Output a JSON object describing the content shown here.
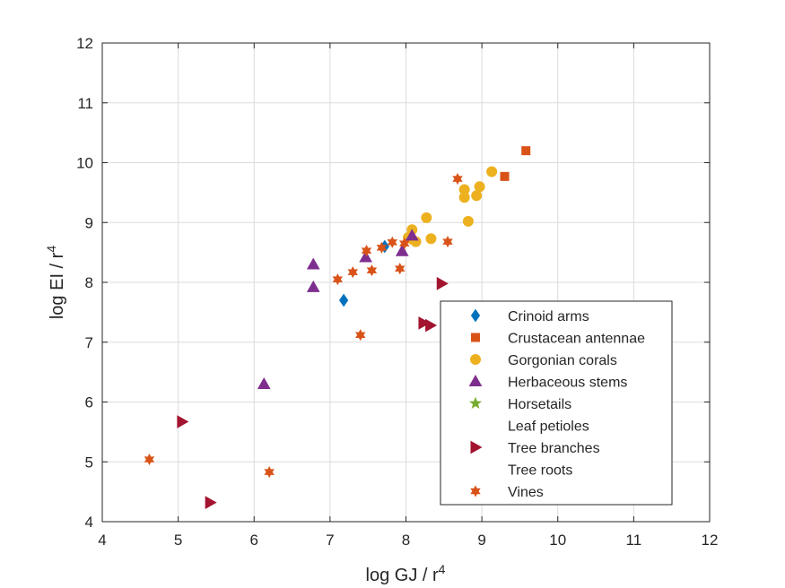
{
  "chart_data": {
    "type": "scatter",
    "xlabel": "log GJ / r",
    "xlabel_sup": "4",
    "ylabel": "log EI / r",
    "ylabel_sup": "4",
    "xlim": [
      4,
      12
    ],
    "ylim": [
      4,
      12
    ],
    "xticks": [
      4,
      5,
      6,
      7,
      8,
      9,
      10,
      11,
      12
    ],
    "yticks": [
      4,
      5,
      6,
      7,
      8,
      9,
      10,
      11,
      12
    ],
    "grid": true,
    "legend_position": "lower-right",
    "series": [
      {
        "name": "Crinoid arms",
        "marker": "diamond",
        "color": "#0072BD",
        "points": [
          [
            7.18,
            7.7
          ],
          [
            7.72,
            8.6
          ]
        ]
      },
      {
        "name": "Crustacean antennae",
        "marker": "square",
        "color": "#D95319",
        "points": [
          [
            9.58,
            10.2
          ],
          [
            9.3,
            9.77
          ]
        ]
      },
      {
        "name": "Gorgonian corals",
        "marker": "circle",
        "color": "#EDB120",
        "points": [
          [
            9.13,
            9.85
          ],
          [
            8.97,
            9.6
          ],
          [
            8.77,
            9.55
          ],
          [
            8.77,
            9.42
          ],
          [
            8.93,
            9.45
          ],
          [
            8.82,
            9.02
          ],
          [
            8.27,
            9.08
          ],
          [
            8.33,
            8.73
          ],
          [
            8.08,
            8.88
          ],
          [
            8.08,
            8.72
          ],
          [
            8.13,
            8.68
          ],
          [
            8.03,
            8.75
          ]
        ]
      },
      {
        "name": "Herbaceous stems",
        "marker": "triangle-up",
        "color": "#7E2F8E",
        "points": [
          [
            6.78,
            8.3
          ],
          [
            6.78,
            7.92
          ],
          [
            7.47,
            8.42
          ],
          [
            7.95,
            8.52
          ],
          [
            8.08,
            8.78
          ],
          [
            6.13,
            6.3
          ]
        ]
      },
      {
        "name": "Horsetails",
        "marker": "star5",
        "color": "#77AC30",
        "points": []
      },
      {
        "name": "Leaf petioles",
        "marker": "none",
        "color": "#4DBEEE",
        "points": []
      },
      {
        "name": "Tree branches",
        "marker": "triangle-right",
        "color": "#A2142F",
        "points": [
          [
            8.47,
            7.98
          ],
          [
            8.23,
            7.32
          ],
          [
            8.32,
            7.28
          ],
          [
            5.05,
            5.67
          ],
          [
            5.42,
            4.32
          ]
        ]
      },
      {
        "name": "Tree roots",
        "marker": "none",
        "color": "#0072BD",
        "points": []
      },
      {
        "name": "Vines",
        "marker": "star6",
        "color": "#D95319",
        "points": [
          [
            8.68,
            9.73
          ],
          [
            8.55,
            8.68
          ],
          [
            7.48,
            8.53
          ],
          [
            7.82,
            8.67
          ],
          [
            7.68,
            8.58
          ],
          [
            7.3,
            8.17
          ],
          [
            7.55,
            8.2
          ],
          [
            7.1,
            8.05
          ],
          [
            7.92,
            8.23
          ],
          [
            7.98,
            8.65
          ],
          [
            7.4,
            7.12
          ],
          [
            4.62,
            5.04
          ],
          [
            6.2,
            4.83
          ]
        ]
      }
    ]
  }
}
